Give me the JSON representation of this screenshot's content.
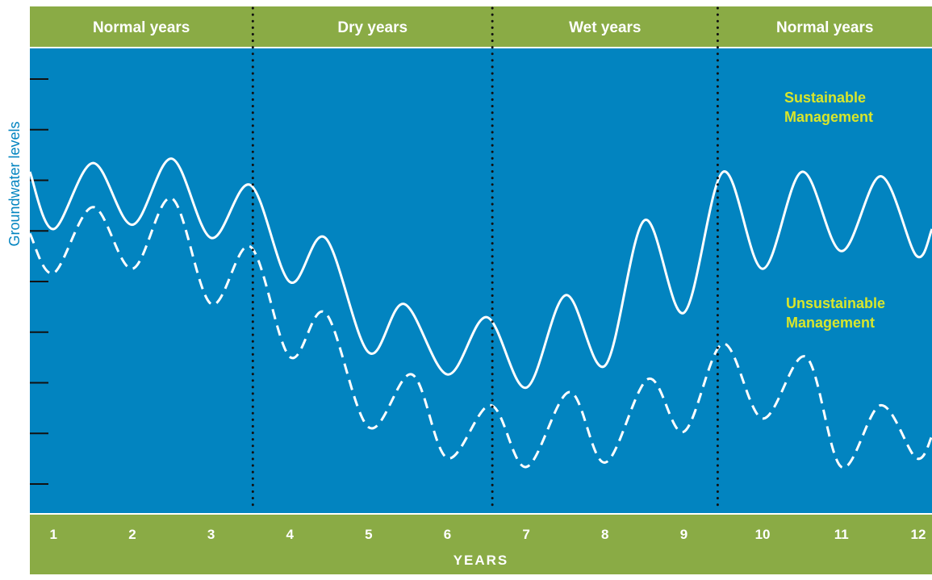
{
  "colors": {
    "plot_background": "#0284c0",
    "band": "#8aab45",
    "line": "#ffffff",
    "series_label": "#d9e62b",
    "ylabel": "#0284c0",
    "divider": "#111111",
    "tick": "#111111"
  },
  "chart_data": {
    "type": "line",
    "xlabel": "YEARS",
    "ylabel": "Groundwater levels",
    "x_ticks": [
      1,
      2,
      3,
      4,
      5,
      6,
      7,
      8,
      9,
      10,
      11,
      12
    ],
    "xlim": [
      0.7,
      12.15
    ],
    "ylim": [
      0,
      10
    ],
    "y_tick_count": 9,
    "y_tick_labels": [],
    "grid": false,
    "periods": [
      {
        "label": "Normal years",
        "start": 0.7,
        "end": 3.53
      },
      {
        "label": "Dry years",
        "start": 3.53,
        "end": 6.57
      },
      {
        "label": "Wet years",
        "start": 6.57,
        "end": 9.43
      },
      {
        "label": "Normal years",
        "start": 9.43,
        "end": 12.15
      }
    ],
    "dividers": [
      3.53,
      6.57,
      9.43
    ],
    "series": [
      {
        "name": "Sustainable Management",
        "style": "solid",
        "points": [
          [
            0.7,
            7.6
          ],
          [
            1.0,
            6.3
          ],
          [
            1.5,
            7.8
          ],
          [
            2.0,
            6.4
          ],
          [
            2.5,
            7.9
          ],
          [
            3.0,
            6.1
          ],
          [
            3.5,
            7.3
          ],
          [
            4.0,
            5.1
          ],
          [
            4.45,
            6.1
          ],
          [
            5.0,
            3.5
          ],
          [
            5.45,
            4.6
          ],
          [
            6.0,
            3.0
          ],
          [
            6.5,
            4.3
          ],
          [
            7.0,
            2.7
          ],
          [
            7.5,
            4.8
          ],
          [
            8.0,
            3.2
          ],
          [
            8.5,
            6.5
          ],
          [
            9.0,
            4.4
          ],
          [
            9.5,
            7.6
          ],
          [
            10.0,
            5.4
          ],
          [
            10.5,
            7.6
          ],
          [
            11.0,
            5.8
          ],
          [
            11.5,
            7.5
          ],
          [
            11.95,
            5.7
          ],
          [
            12.15,
            6.3
          ]
        ]
      },
      {
        "name": "Unsustainable Management",
        "style": "dashed",
        "points": [
          [
            0.7,
            6.2
          ],
          [
            1.0,
            5.3
          ],
          [
            1.5,
            6.8
          ],
          [
            2.0,
            5.4
          ],
          [
            2.5,
            7.0
          ],
          [
            3.0,
            4.6
          ],
          [
            3.5,
            5.9
          ],
          [
            4.0,
            3.4
          ],
          [
            4.45,
            4.4
          ],
          [
            5.0,
            1.8
          ],
          [
            5.55,
            3.0
          ],
          [
            6.0,
            1.1
          ],
          [
            6.55,
            2.3
          ],
          [
            7.0,
            0.9
          ],
          [
            7.55,
            2.6
          ],
          [
            8.0,
            1.0
          ],
          [
            8.55,
            2.9
          ],
          [
            9.0,
            1.7
          ],
          [
            9.5,
            3.7
          ],
          [
            10.0,
            2.0
          ],
          [
            10.55,
            3.4
          ],
          [
            11.0,
            0.9
          ],
          [
            11.5,
            2.3
          ],
          [
            11.95,
            1.1
          ],
          [
            12.15,
            1.6
          ]
        ]
      }
    ]
  }
}
